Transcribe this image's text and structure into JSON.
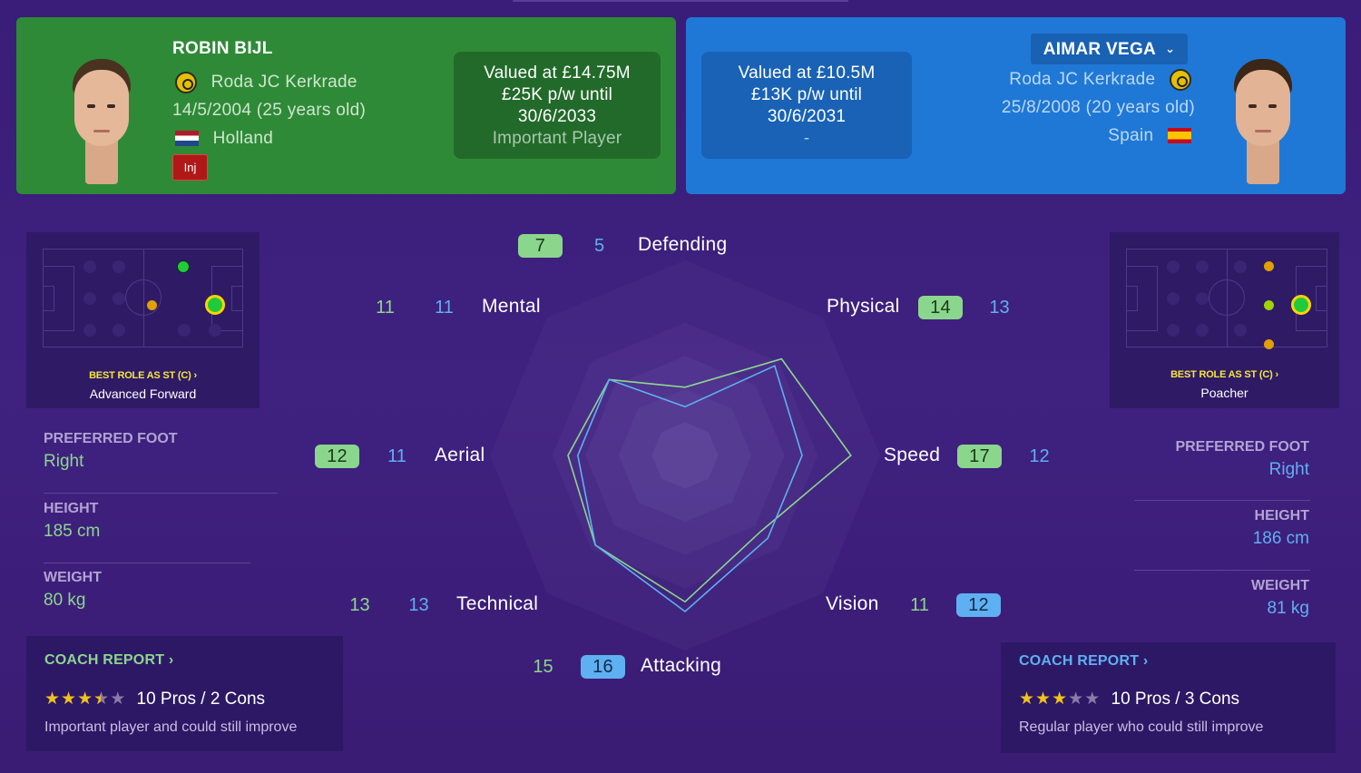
{
  "players": {
    "left": {
      "name": "ROBIN BIJL",
      "club": "Roda JC Kerkrade",
      "dob": "14/5/2004 (25 years old)",
      "nation": "Holland",
      "injury": "Inj",
      "value_line1": "Valued at £14.75M",
      "value_line2": "£25K p/w until",
      "value_line3": "30/6/2033",
      "status": "Important Player",
      "best_role_label": "BEST ROLE AS ST (C)",
      "role": "Advanced Forward",
      "preferred_foot_label": "PREFERRED FOOT",
      "preferred_foot": "Right",
      "height_label": "HEIGHT",
      "height": "185 cm",
      "weight_label": "WEIGHT",
      "weight": "80 kg",
      "coach_title": "COACH REPORT",
      "coach_stars": 3.5,
      "pros_cons": "10 Pros / 2 Cons",
      "summary": "Important player and could still improve"
    },
    "right": {
      "name": "AIMAR VEGA",
      "club": "Roda JC Kerkrade",
      "dob": "25/8/2008 (20 years old)",
      "nation": "Spain",
      "value_line1": "Valued at £10.5M",
      "value_line2": "£13K p/w until",
      "value_line3": "30/6/2031",
      "status": "-",
      "best_role_label": "BEST ROLE AS ST (C)",
      "role": "Poacher",
      "preferred_foot_label": "PREFERRED FOOT",
      "preferred_foot": "Right",
      "height_label": "HEIGHT",
      "height": "186 cm",
      "weight_label": "WEIGHT",
      "weight": "81 kg",
      "coach_title": "COACH REPORT",
      "coach_stars": 3,
      "pros_cons": "10 Pros / 3 Cons",
      "summary": "Regular player who could still improve"
    }
  },
  "colors": {
    "left_accent": "#8bd68d",
    "right_accent": "#5eb0f2",
    "left_card": "#2e8a36",
    "right_card": "#1f78d6",
    "background": "#3b1e78"
  },
  "icons": {
    "club": "club-crest-icon",
    "chevron": "chevron-right-icon",
    "dropdown": "chevron-down-icon",
    "star": "star-icon"
  },
  "chart_data": {
    "type": "radar",
    "axes": [
      "Defending",
      "Physical",
      "Speed",
      "Vision",
      "Attacking",
      "Technical",
      "Aerial",
      "Mental"
    ],
    "max": 20,
    "series": [
      {
        "name": "ROBIN BIJL",
        "values": [
          7,
          14,
          17,
          11,
          15,
          13,
          12,
          11
        ]
      },
      {
        "name": "AIMAR VEGA",
        "values": [
          5,
          13,
          12,
          12,
          16,
          13,
          11,
          11
        ]
      }
    ],
    "labels": {
      "defending": {
        "name": "Defending",
        "left": "7",
        "right": "5",
        "winner": "left"
      },
      "physical": {
        "name": "Physical",
        "left": "14",
        "right": "13",
        "winner": "left"
      },
      "speed": {
        "name": "Speed",
        "left": "17",
        "right": "12",
        "winner": "left"
      },
      "vision": {
        "name": "Vision",
        "left": "11",
        "right": "12",
        "winner": "right"
      },
      "attacking": {
        "name": "Attacking",
        "left": "15",
        "right": "16",
        "winner": "right"
      },
      "technical": {
        "name": "Technical",
        "left": "13",
        "right": "13",
        "winner": "none"
      },
      "aerial": {
        "name": "Aerial",
        "left": "12",
        "right": "11",
        "winner": "left"
      },
      "mental": {
        "name": "Mental",
        "left": "11",
        "right": "11",
        "winner": "none"
      }
    }
  }
}
